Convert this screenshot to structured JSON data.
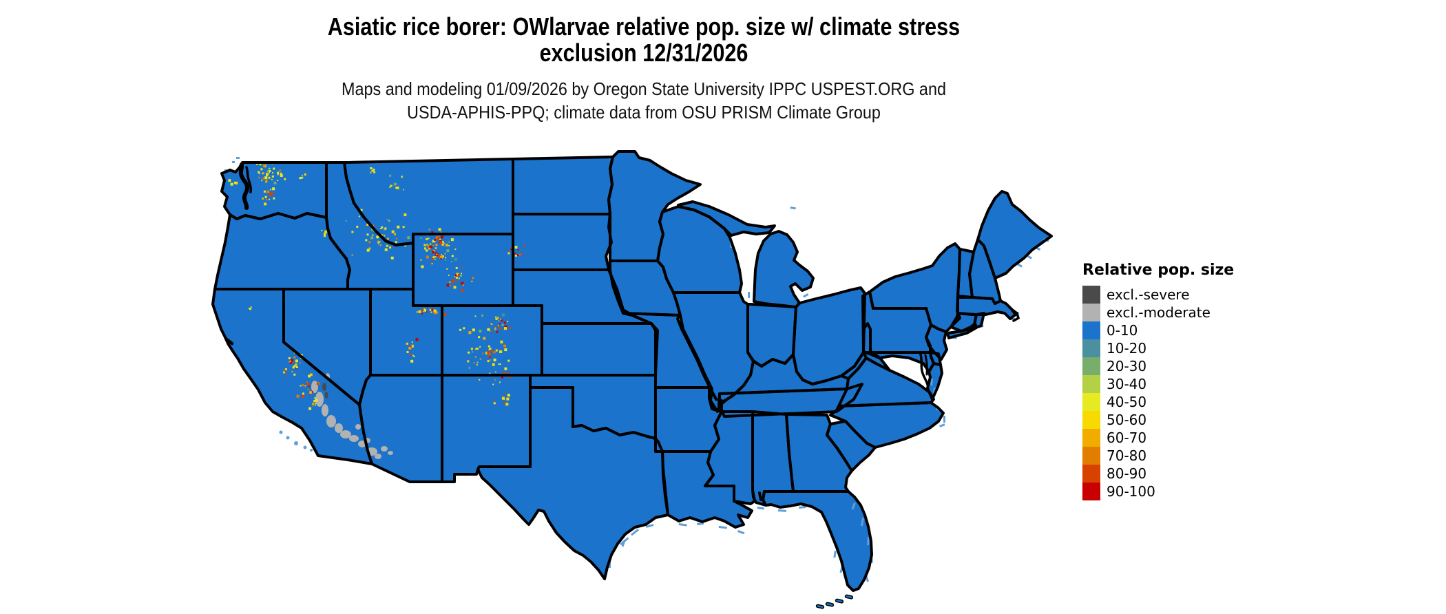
{
  "header": {
    "title_line1": "Asiatic rice borer: OWlarvae relative pop. size w/ climate stress",
    "title_line2": "exclusion 12/31/2026",
    "subtitle_line1": "Maps and modeling 01/09/2026 by Oregon State University IPPC USPEST.ORG and",
    "subtitle_line2": "USDA-APHIS-PPQ; climate data from OSU PRISM Climate Group"
  },
  "legend": {
    "title": "Relative pop. size",
    "items": [
      {
        "label": "excl.-severe",
        "color": "#4a4a4a"
      },
      {
        "label": "excl.-moderate",
        "color": "#b2b2b2"
      },
      {
        "label": "0-10",
        "color": "#1b73cb"
      },
      {
        "label": "10-20",
        "color": "#4a90a0"
      },
      {
        "label": "20-30",
        "color": "#77ae6b"
      },
      {
        "label": "30-40",
        "color": "#b4d044"
      },
      {
        "label": "40-50",
        "color": "#e6ea21"
      },
      {
        "label": "50-60",
        "color": "#f8da00"
      },
      {
        "label": "60-70",
        "color": "#f0ad00"
      },
      {
        "label": "70-80",
        "color": "#e37d00"
      },
      {
        "label": "80-90",
        "color": "#d84200"
      },
      {
        "label": "90-100",
        "color": "#c80000"
      }
    ]
  },
  "map": {
    "land_fill": "#1b73cb",
    "state_border": "#000000",
    "water": "#ffffff",
    "coast_fringe": "#5f9fda",
    "excl_moderate": "#b2b2b2",
    "excl_severe": "#4a4a4a",
    "hotspot": {
      "yellow": "#e6ea21",
      "gold": "#f8da00",
      "orange": "#f0ad00",
      "dark_orange": "#e37d00",
      "red_orange": "#d84200",
      "red": "#c80000",
      "yellow_green": "#b4d044",
      "green": "#77ae6b",
      "teal": "#4a90a0"
    }
  }
}
